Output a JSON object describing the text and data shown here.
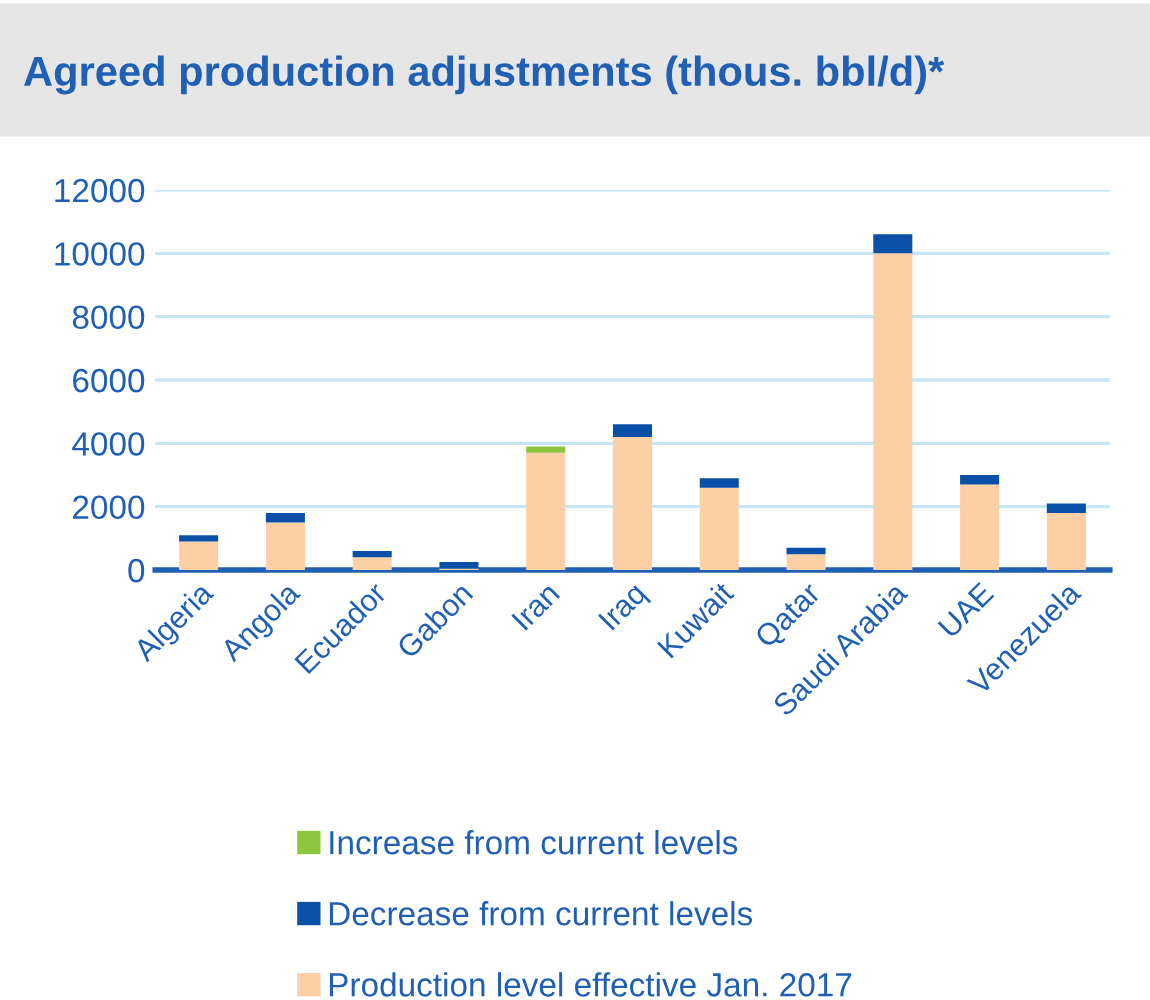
{
  "chart_data": {
    "type": "bar",
    "title": "Agreed production adjustments (thous. bbl/d)*",
    "stacked": true,
    "categories": [
      "Algeria",
      "Angola",
      "Ecuador",
      "Gabon",
      "Iran",
      "Iraq",
      "Kuwait",
      "Qatar",
      "Saudi Arabia",
      "UAE",
      "Venezuela"
    ],
    "series": [
      {
        "name": "Production level effective Jan. 2017",
        "color": "#fcd0a4",
        "values": [
          900,
          1500,
          400,
          50,
          3700,
          4200,
          2600,
          500,
          10000,
          2700,
          1800
        ]
      },
      {
        "name": "Decrease from current levels",
        "color": "#0b50a8",
        "values": [
          200,
          300,
          200,
          200,
          null,
          400,
          300,
          200,
          600,
          300,
          300
        ]
      },
      {
        "name": "Increase from current levels",
        "color": "#8cc63f",
        "values": [
          null,
          null,
          null,
          null,
          200,
          null,
          null,
          null,
          null,
          null,
          null
        ]
      }
    ],
    "ylim": [
      0,
      12000
    ],
    "yticks": [
      0,
      2000,
      4000,
      6000,
      8000,
      10000,
      12000
    ],
    "grid": "y",
    "legend": "bottom"
  }
}
